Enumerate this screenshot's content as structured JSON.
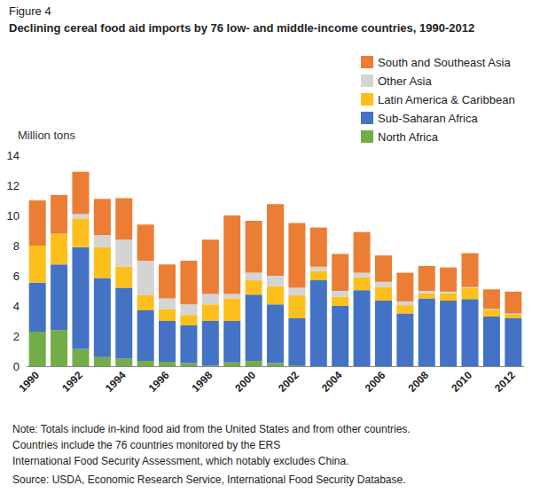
{
  "chart_data": {
    "type": "bar",
    "figure_label": "Figure 4",
    "title": "Declining cereal food aid imports by 76 low- and middle-income countries, 1990-2012",
    "y_label": "Million tons",
    "categories": [
      "1990",
      null,
      "1992",
      null,
      "1994",
      null,
      "1996",
      null,
      "1998",
      null,
      "2000",
      null,
      "2002",
      null,
      "2004",
      null,
      "2006",
      null,
      "2008",
      null,
      "2010",
      null,
      "2012"
    ],
    "series": [
      {
        "name": "North Africa",
        "color": "#72ad47",
        "values": [
          2.3,
          2.4,
          1.15,
          0.6,
          0.5,
          0.35,
          0.3,
          0.2,
          0.05,
          0.25,
          0.35,
          0.2,
          0.05,
          0,
          0,
          0,
          0,
          0,
          0,
          0,
          0,
          0,
          0
        ]
      },
      {
        "name": "Sub-Saharan Africa",
        "color": "#4472c4",
        "values": [
          3.25,
          4.35,
          6.75,
          5.25,
          4.7,
          3.35,
          2.7,
          2.5,
          2.95,
          2.75,
          4.4,
          3.9,
          3.15,
          5.7,
          4.0,
          5.05,
          4.35,
          3.5,
          4.5,
          4.35,
          4.45,
          3.3,
          3.2
        ]
      },
      {
        "name": "Latin America & Caribbean",
        "color": "#fdbf1b",
        "values": [
          2.45,
          2.05,
          1.9,
          2.05,
          1.4,
          1.0,
          0.8,
          0.7,
          1.1,
          1.5,
          0.95,
          1.2,
          1.5,
          0.6,
          0.6,
          0.85,
          0.9,
          0.55,
          0.35,
          0.5,
          0.75,
          0.45,
          0.25
        ]
      },
      {
        "name": "Other Asia",
        "color": "#d4d4d4",
        "values": [
          0,
          0,
          0.3,
          0.8,
          1.8,
          2.3,
          0.7,
          0.7,
          0.7,
          0.3,
          0.5,
          0.7,
          0.5,
          0.3,
          0.4,
          0.3,
          0.35,
          0.25,
          0.15,
          0.1,
          0.05,
          0.05,
          0.05
        ]
      },
      {
        "name": "South and Southeast Asia",
        "color": "#eb7d35",
        "values": [
          3.0,
          2.55,
          2.8,
          2.4,
          2.75,
          2.4,
          2.25,
          2.9,
          3.6,
          5.2,
          3.45,
          4.75,
          4.3,
          2.6,
          2.45,
          2.7,
          1.75,
          1.9,
          1.65,
          1.6,
          2.25,
          1.3,
          1.45
        ]
      }
    ],
    "stacked": true,
    "ylim": [
      0,
      14
    ],
    "yticks": [
      0,
      2,
      4,
      6,
      8,
      10,
      12,
      14
    ],
    "grid": false,
    "legend": "top-right",
    "notes": [
      "Note: Totals include in-kind food aid from the United States and from other countries.",
      "Countries include the 76 countries monitored by the ERS",
      "International Food Security Assessment, which notably excludes China."
    ],
    "source": "Source: USDA, Economic Research Service, International Food Security Database."
  }
}
